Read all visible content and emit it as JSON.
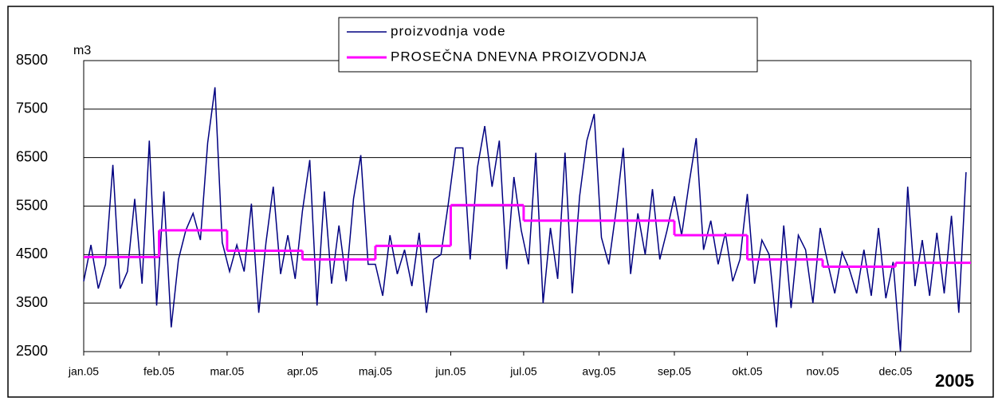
{
  "chart_data": {
    "type": "line",
    "y_label": "m3",
    "annotation": "2005",
    "xlim": [
      0,
      365
    ],
    "xticks": [
      {
        "value": 0,
        "label": "jan.05"
      },
      {
        "value": 31,
        "label": "feb.05"
      },
      {
        "value": 59,
        "label": "mar.05"
      },
      {
        "value": 90,
        "label": "apr.05"
      },
      {
        "value": 120,
        "label": "maj.05"
      },
      {
        "value": 151,
        "label": "jun.05"
      },
      {
        "value": 181,
        "label": "jul.05"
      },
      {
        "value": 212,
        "label": "avg.05"
      },
      {
        "value": 243,
        "label": "sep.05"
      },
      {
        "value": 273,
        "label": "okt.05"
      },
      {
        "value": 304,
        "label": "nov.05"
      },
      {
        "value": 334,
        "label": "dec.05"
      }
    ],
    "ylim": [
      2500,
      8500
    ],
    "yticks": [
      2500,
      3500,
      4500,
      5500,
      6500,
      7500,
      8500
    ],
    "grid": true,
    "series": [
      {
        "name": "proizvodnja vode",
        "color": "#000080",
        "x": [
          0,
          3,
          6,
          9,
          12,
          15,
          18,
          21,
          24,
          27,
          30,
          33,
          36,
          39,
          42,
          45,
          48,
          51,
          54,
          57,
          60,
          63,
          66,
          69,
          72,
          75,
          78,
          81,
          84,
          87,
          90,
          93,
          96,
          99,
          102,
          105,
          108,
          111,
          114,
          117,
          120,
          123,
          126,
          129,
          132,
          135,
          138,
          141,
          144,
          147,
          150,
          153,
          156,
          159,
          162,
          165,
          168,
          171,
          174,
          177,
          180,
          183,
          186,
          189,
          192,
          195,
          198,
          201,
          204,
          207,
          210,
          213,
          216,
          219,
          222,
          225,
          228,
          231,
          234,
          237,
          240,
          243,
          246,
          249,
          252,
          255,
          258,
          261,
          264,
          267,
          270,
          273,
          276,
          279,
          282,
          285,
          288,
          291,
          294,
          297,
          300,
          303,
          306,
          309,
          312,
          315,
          318,
          321,
          324,
          327,
          330,
          333,
          336,
          339,
          342,
          345,
          348,
          351,
          354,
          357,
          360,
          363
        ],
        "values": [
          3950,
          4700,
          3800,
          4300,
          6350,
          3800,
          4150,
          5650,
          3900,
          6850,
          3450,
          5800,
          3000,
          4400,
          5000,
          5350,
          4800,
          6800,
          7950,
          4750,
          4150,
          4700,
          4150,
          5550,
          3300,
          4750,
          5900,
          4100,
          4900,
          4000,
          5400,
          6450,
          3450,
          5800,
          3900,
          5100,
          3950,
          5650,
          6550,
          4300,
          4300,
          3650,
          4900,
          4100,
          4600,
          3850,
          4950,
          3300,
          4400,
          4500,
          5550,
          6700,
          6700,
          4400,
          6300,
          7150,
          5900,
          6850,
          4200,
          6100,
          5000,
          4300,
          6600,
          3500,
          5050,
          4000,
          6600,
          3700,
          5700,
          6850,
          7400,
          4850,
          4300,
          5400,
          6700,
          4100,
          5350,
          4500,
          5850,
          4400,
          5000,
          5700,
          4900,
          5950,
          6900,
          4600,
          5200,
          4300,
          4950,
          3950,
          4400,
          5750,
          3900,
          4800,
          4500,
          3000,
          5100,
          3400,
          4900,
          4600,
          3500,
          5050,
          4350,
          3700,
          4550,
          4200,
          3700,
          4600,
          3650,
          5050,
          3600,
          4350,
          2500,
          5900,
          3850,
          4800,
          3650,
          4950,
          3700,
          5300,
          3300,
          6200
        ]
      },
      {
        "name": "PROSEČNA DNEVNA PROIZVODNJA",
        "color": "#ff00ff",
        "step": "post",
        "x": [
          0,
          31,
          59,
          90,
          120,
          151,
          181,
          212,
          243,
          273,
          304,
          334
        ],
        "values": [
          4450,
          5000,
          4580,
          4400,
          4680,
          5520,
          5200,
          5200,
          4900,
          4400,
          4250,
          4330
        ]
      }
    ]
  }
}
